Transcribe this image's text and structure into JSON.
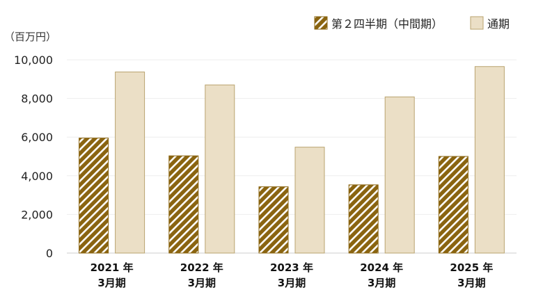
{
  "chart_data": {
    "type": "bar",
    "unit_label": "（百万円）",
    "categories": [
      [
        "2021 年",
        "3月期"
      ],
      [
        "2022 年",
        "3月期"
      ],
      [
        "2023 年",
        "3月期"
      ],
      [
        "2024 年",
        "3月期"
      ],
      [
        "2025 年",
        "3月期"
      ]
    ],
    "series": [
      {
        "name": "第２四半期（中間期）",
        "values": [
          5950,
          5030,
          3430,
          3530,
          5000
        ],
        "fill": "hatched",
        "color": "#8a6410"
      },
      {
        "name": "通期",
        "values": [
          9370,
          8700,
          5480,
          8080,
          9650
        ],
        "fill": "solid",
        "color": "#ebdfc6",
        "stroke": "#b9a36f"
      }
    ],
    "ylim": [
      0,
      10000
    ],
    "yticks": [
      "0",
      "2,000",
      "4,000",
      "6,000",
      "8,000",
      "10,000"
    ],
    "ytick_values": [
      0,
      2000,
      4000,
      6000,
      8000,
      10000
    ],
    "grid": true,
    "legend_position": "top-right"
  }
}
